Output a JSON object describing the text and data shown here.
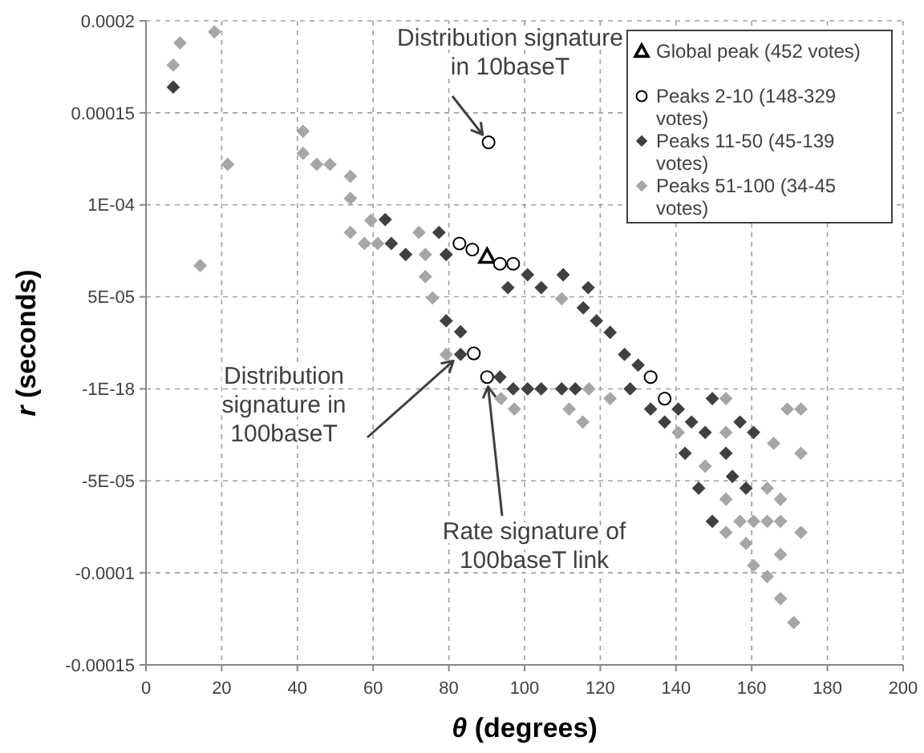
{
  "chart_data": {
    "type": "scatter",
    "xlabel": "θ (degrees)",
    "ylabel": "r (seconds)",
    "xlim": [
      0,
      200
    ],
    "xticks": [
      0,
      20,
      40,
      60,
      80,
      100,
      120,
      140,
      160,
      180,
      200
    ],
    "ylim": [
      -0.00015,
      0.0002
    ],
    "yticks": [
      {
        "value": -0.00015,
        "label": "-0.00015"
      },
      {
        "value": -0.0001,
        "label": "-0.0001"
      },
      {
        "value": -5e-05,
        "label": "-5E-05"
      },
      {
        "value": -1e-18,
        "label": "-1E-18"
      },
      {
        "value": 5e-05,
        "label": "5E-05"
      },
      {
        "value": 0.0001,
        "label": "1E-04"
      },
      {
        "value": 0.00015,
        "label": "0.00015"
      },
      {
        "value": 0.0002,
        "label": "0.0002"
      }
    ],
    "grid": true,
    "legend": "top right",
    "series": [
      {
        "name": "Global peak (452 votes)",
        "color": "#000000",
        "marker": "triangle",
        "x": [
          90.1
        ],
        "values": [
          7.2e-05
        ]
      },
      {
        "name": "Peaks 2-10 (148-329 votes)",
        "color": "#000000",
        "marker": "circle",
        "x": [
          82.8,
          86.2,
          90.5,
          93.5,
          97.0,
          86.6,
          90.1,
          133.3,
          137.0
        ],
        "values": [
          7.9e-05,
          7.57e-05,
          0.000134,
          6.8e-05,
          6.8e-05,
          1.93e-05,
          6.4e-06,
          6.4e-06,
          -5.3e-06
        ]
      },
      {
        "name": "Peaks 11-50 (45-139 votes)",
        "color": "#404040",
        "marker": "diamond",
        "x": [
          7.2,
          63.2,
          64.8,
          68.6,
          77.4,
          79.3,
          79.3,
          83.1,
          83.1,
          95.6,
          100.8,
          104.4,
          110.2,
          116.8,
          115.5,
          119.0,
          122.6,
          126.4,
          130.0,
          93.5,
          97.0,
          100.8,
          104.4,
          109.8,
          113.4,
          127.9,
          133.3,
          137.0,
          140.6,
          144.1,
          142.4,
          147.7,
          149.6,
          153.2,
          146.0,
          154.9,
          149.6,
          156.9,
          160.5,
          158.5
        ],
        "values": [
          0.000164,
          9.2e-05,
          7.9e-05,
          7.3e-05,
          8.5e-05,
          7.3e-05,
          3.7e-05,
          3.1e-05,
          1.87e-05,
          5.5e-05,
          6.2e-05,
          5.5e-05,
          6.2e-05,
          5.5e-05,
          4.4e-05,
          3.7e-05,
          3.07e-05,
          1.87e-05,
          1.29e-05,
          6.4e-06,
          0,
          0,
          0,
          0,
          0,
          0,
          -1.1e-05,
          -1.8e-05,
          -1.1e-05,
          -1.8e-05,
          -3.5e-05,
          -2.37e-05,
          -5.3e-06,
          -3.5e-05,
          -5.4e-05,
          -4.76e-05,
          -7.2e-05,
          -1.8e-05,
          -2.37e-05,
          -5.4e-05
        ]
      },
      {
        "name": "Peaks 51-100 (34-45 votes)",
        "color": "#a6a6a6",
        "marker": "diamond",
        "x": [
          7.2,
          9.0,
          18.1,
          21.6,
          14.3,
          41.5,
          41.5,
          45.1,
          48.6,
          54,
          54,
          54,
          57.7,
          59.4,
          61.2,
          72.1,
          73.8,
          73.8,
          75.7,
          79.3,
          109.8,
          93.8,
          97.3,
          111.8,
          115.4,
          117.0,
          122.6,
          140.6,
          147.7,
          153.2,
          153.2,
          153.2,
          153.2,
          156.9,
          160.5,
          164.1,
          167.6,
          158.5,
          160.5,
          164.1,
          167.6,
          167.6,
          171.1,
          164.1,
          167.6,
          173.0,
          165.8,
          169.4,
          173.0,
          173.0
        ],
        "values": [
          0.000176,
          0.000188,
          0.000194,
          0.000122,
          6.7e-05,
          0.00014,
          0.000128,
          0.000122,
          0.000122,
          0.0001155,
          0.0001035,
          8.5e-05,
          7.9e-05,
          9.15e-05,
          7.9e-05,
          8.5e-05,
          7.3e-05,
          6.1e-05,
          4.94e-05,
          1.87e-05,
          4.9e-05,
          -5.3e-06,
          -1.1e-05,
          -1.1e-05,
          -1.8e-05,
          0,
          -5.3e-06,
          -2.37e-05,
          -4.2e-05,
          -5.3e-06,
          -2.37e-05,
          -6e-05,
          -7.8e-05,
          -7.2e-05,
          -7.2e-05,
          -7.2e-05,
          -7.2e-05,
          -8.4e-05,
          -9.6e-05,
          -0.000102,
          -9e-05,
          -0.000114,
          -0.000127,
          -5.4e-05,
          -6e-05,
          -7.8e-05,
          -2.96e-05,
          -1.1e-05,
          -1.1e-05,
          -3.5e-05
        ]
      }
    ],
    "annotations": [
      {
        "text": "Distribution signature in 10baseT",
        "x": 90.5,
        "y": 0.000134
      },
      {
        "text": "Distribution signature in 100baseT",
        "x": 83.1,
        "y": 1.87e-05
      },
      {
        "text": "Rate signature of 100baseT link",
        "x": 90.1,
        "y": 6.4e-06
      }
    ]
  }
}
